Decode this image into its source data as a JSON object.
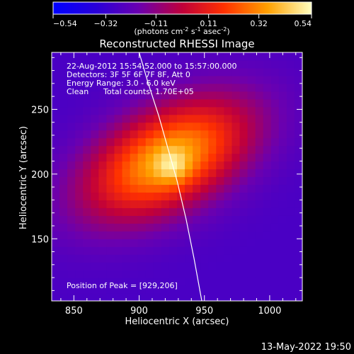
{
  "chart_data": {
    "type": "heatmap",
    "title": "Reconstructed RHESSI Image",
    "xlabel": "Heliocentric X (arcsec)",
    "ylabel": "Heliocentric Y (arcsec)",
    "xlim": [
      833,
      1025
    ],
    "ylim": [
      102,
      294
    ],
    "x_ticks": [
      "850",
      "900",
      "950",
      "1000"
    ],
    "x_tick_values": [
      850,
      900,
      950,
      1000
    ],
    "y_ticks": [
      "150",
      "200",
      "250"
    ],
    "y_tick_values": [
      150,
      200,
      250
    ],
    "colorbar": {
      "range": [
        -0.54,
        0.54
      ],
      "tick_labels": [
        "-0.54",
        "-0.32",
        "-0.11",
        "0.11",
        "0.32",
        "0.54"
      ],
      "tick_values": [
        -0.54,
        -0.32,
        -0.11,
        0.11,
        0.32,
        0.54
      ],
      "units_label": "(photons cm",
      "units_exp1": "-2",
      "units_mid": " s",
      "units_exp2": "-1",
      "units_end": " asec",
      "units_exp3": "-2",
      "units_close": ")"
    },
    "annotations": {
      "time_range": "22-Aug-2012 15:54:52.000 to 15:57:00.000",
      "detectors": "Detectors: 3F 5F 6F 7F 8F, Att 0",
      "energy_range": "Energy Range: 3.0 - 6.0 keV",
      "clean": "Clean",
      "total_counts": "Total counts: 1.70E+05",
      "peak": "Position of Peak = [929,206]"
    },
    "peak_position": [
      929,
      206
    ],
    "source_model": {
      "center": [
        922,
        212
      ],
      "peak_value": 0.54,
      "background": -0.27,
      "angle_deg": 28,
      "sigma_major": 48,
      "sigma_minor": 26,
      "inner_center": [
        926,
        206
      ],
      "inner_sigma": 9,
      "inner_amp": 0.16
    },
    "limb_curve": {
      "x": [
        900,
        907,
        915,
        922,
        929,
        936,
        942,
        948
      ],
      "y": [
        294,
        270,
        245,
        220,
        195,
        165,
        135,
        102
      ]
    },
    "grid": false,
    "pixel_size_arcsec": 6
  },
  "footer": {
    "date": "13-May-2022 19:50"
  },
  "colors": {
    "background": "#000000",
    "text": "#ffffff",
    "limb_line": "#ffffff"
  }
}
